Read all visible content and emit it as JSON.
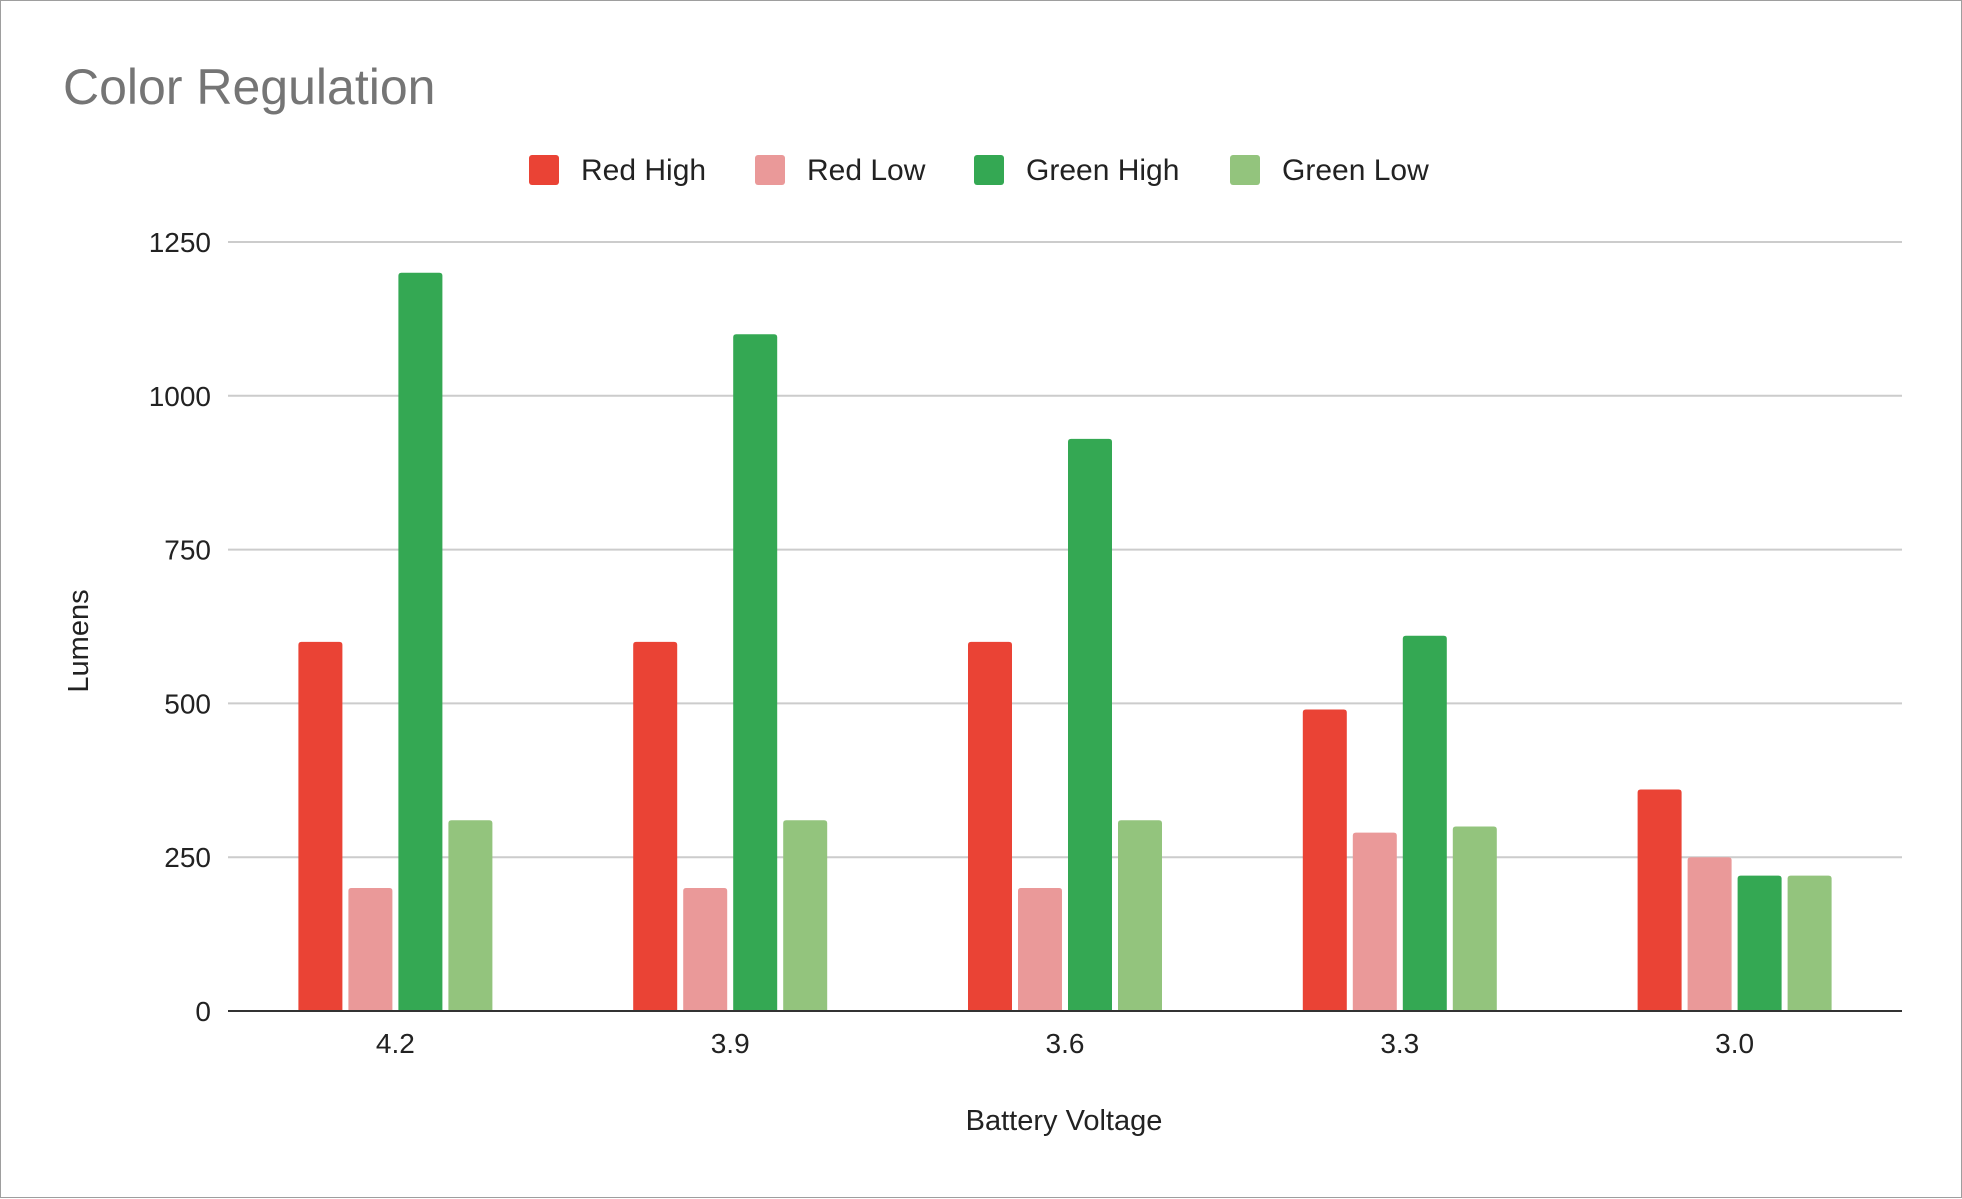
{
  "chart_data": {
    "type": "bar",
    "title": "Color Regulation",
    "xlabel": "Battery Voltage",
    "ylabel": "Lumens",
    "categories": [
      "4.2",
      "3.9",
      "3.6",
      "3.3",
      "3.0"
    ],
    "series": [
      {
        "name": "Red High",
        "color": "#ea4335",
        "values": [
          600,
          600,
          600,
          490,
          360
        ]
      },
      {
        "name": "Red Low",
        "color": "#ea9999",
        "values": [
          200,
          200,
          200,
          290,
          250
        ]
      },
      {
        "name": "Green High",
        "color": "#34a853",
        "values": [
          1200,
          1100,
          930,
          610,
          220
        ]
      },
      {
        "name": "Green Low",
        "color": "#93c47d",
        "values": [
          310,
          310,
          310,
          300,
          220
        ]
      }
    ],
    "ylim": [
      0,
      1250
    ],
    "yticks": [
      0,
      250,
      500,
      750,
      1000,
      1250
    ],
    "grid": true,
    "legend_position": "top"
  }
}
